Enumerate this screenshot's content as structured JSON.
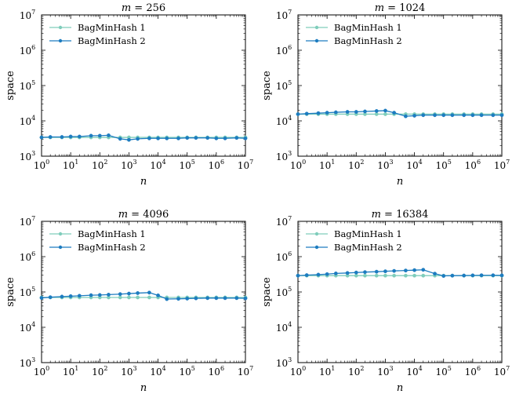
{
  "chart_data": [
    {
      "type": "line",
      "title": "m = 256",
      "title_var": "m",
      "title_value": "256",
      "xlabel": "n",
      "ylabel": "space",
      "xscale": "log",
      "yscale": "log",
      "xlim": [
        1,
        10000000
      ],
      "ylim": [
        1000,
        10000000
      ],
      "xticks": [
        1,
        10,
        100,
        1000,
        10000,
        100000,
        1000000,
        10000000
      ],
      "yticks": [
        1000,
        10000,
        100000,
        1000000,
        10000000
      ],
      "legend_position": "top-left",
      "x": [
        1,
        2,
        5,
        10,
        20,
        50,
        100,
        200,
        500,
        1000,
        2000,
        5000,
        10000,
        20000,
        50000,
        100000,
        200000,
        500000,
        1000000,
        2000000,
        5000000,
        10000000
      ],
      "series": [
        {
          "name": "BagMinHash 1",
          "color": "#7fcdbb",
          "values": [
            3400,
            3400,
            3400,
            3400,
            3400,
            3400,
            3400,
            3400,
            3400,
            3400,
            3400,
            3400,
            3400,
            3400,
            3400,
            3400,
            3400,
            3400,
            3400,
            3400,
            3400,
            3400
          ]
        },
        {
          "name": "BagMinHash 2",
          "color": "#1d7cc0",
          "values": [
            3400,
            3500,
            3500,
            3600,
            3600,
            3800,
            3800,
            3900,
            3100,
            2900,
            3100,
            3200,
            3200,
            3200,
            3200,
            3300,
            3300,
            3300,
            3200,
            3200,
            3300,
            3200
          ]
        }
      ]
    },
    {
      "type": "line",
      "title": "m = 1024",
      "title_var": "m",
      "title_value": "1024",
      "xlabel": "n",
      "ylabel": "space",
      "xscale": "log",
      "yscale": "log",
      "xlim": [
        1,
        10000000
      ],
      "ylim": [
        1000,
        10000000
      ],
      "xticks": [
        1,
        10,
        100,
        1000,
        10000,
        100000,
        1000000,
        10000000
      ],
      "yticks": [
        1000,
        10000,
        100000,
        1000000,
        10000000
      ],
      "legend_position": "top-left",
      "x": [
        1,
        2,
        5,
        10,
        20,
        50,
        100,
        200,
        500,
        1000,
        2000,
        5000,
        10000,
        20000,
        50000,
        100000,
        200000,
        500000,
        1000000,
        2000000,
        5000000,
        10000000
      ],
      "series": [
        {
          "name": "BagMinHash 1",
          "color": "#7fcdbb",
          "values": [
            15500,
            15500,
            15500,
            15500,
            15500,
            15500,
            15500,
            15500,
            15500,
            15500,
            15500,
            15500,
            15500,
            15500,
            15500,
            15500,
            15500,
            15500,
            15500,
            15500,
            15500,
            15500
          ]
        },
        {
          "name": "BagMinHash 2",
          "color": "#1d7cc0",
          "values": [
            15500,
            16000,
            16500,
            17000,
            17500,
            18000,
            18000,
            18500,
            19000,
            19500,
            17000,
            13500,
            14000,
            14500,
            14500,
            14500,
            14500,
            14500,
            14500,
            14500,
            14500,
            14500
          ]
        }
      ]
    },
    {
      "type": "line",
      "title": "m = 4096",
      "title_var": "m",
      "title_value": "4096",
      "xlabel": "n",
      "ylabel": "space",
      "xscale": "log",
      "yscale": "log",
      "xlim": [
        1,
        10000000
      ],
      "ylim": [
        1000,
        10000000
      ],
      "xticks": [
        1,
        10,
        100,
        1000,
        10000,
        100000,
        1000000,
        10000000
      ],
      "yticks": [
        1000,
        10000,
        100000,
        1000000,
        10000000
      ],
      "legend_position": "top-left",
      "x": [
        1,
        2,
        5,
        10,
        20,
        50,
        100,
        200,
        500,
        1000,
        2000,
        5000,
        10000,
        20000,
        50000,
        100000,
        200000,
        500000,
        1000000,
        2000000,
        5000000,
        10000000
      ],
      "series": [
        {
          "name": "BagMinHash 1",
          "color": "#7fcdbb",
          "values": [
            70000,
            70000,
            70000,
            70000,
            70000,
            70000,
            70000,
            70000,
            70000,
            70000,
            70000,
            70000,
            70000,
            70000,
            70000,
            70000,
            70000,
            70000,
            70000,
            70000,
            70000,
            70000
          ]
        },
        {
          "name": "BagMinHash 2",
          "color": "#1d7cc0",
          "values": [
            68000,
            71000,
            74000,
            76000,
            78000,
            81000,
            82000,
            84000,
            87000,
            90000,
            93000,
            96000,
            80000,
            63000,
            64000,
            65000,
            66000,
            67000,
            67000,
            67000,
            67000,
            66000
          ]
        }
      ]
    },
    {
      "type": "line",
      "title": "m = 16384",
      "title_var": "m",
      "title_value": "16384",
      "xlabel": "n",
      "ylabel": "space",
      "xscale": "log",
      "yscale": "log",
      "xlim": [
        1,
        10000000
      ],
      "ylim": [
        1000,
        10000000
      ],
      "xticks": [
        1,
        10,
        100,
        1000,
        10000,
        100000,
        1000000,
        10000000
      ],
      "yticks": [
        1000,
        10000,
        100000,
        1000000,
        10000000
      ],
      "legend_position": "top-left",
      "x": [
        1,
        2,
        5,
        10,
        20,
        50,
        100,
        200,
        500,
        1000,
        2000,
        5000,
        10000,
        20000,
        50000,
        100000,
        200000,
        500000,
        1000000,
        2000000,
        5000000,
        10000000
      ],
      "series": [
        {
          "name": "BagMinHash 1",
          "color": "#7fcdbb",
          "values": [
            290000,
            290000,
            290000,
            290000,
            290000,
            290000,
            290000,
            290000,
            290000,
            290000,
            290000,
            290000,
            290000,
            290000,
            290000,
            290000,
            290000,
            290000,
            290000,
            290000,
            290000,
            290000
          ]
        },
        {
          "name": "BagMinHash 2",
          "color": "#1d7cc0",
          "values": [
            290000,
            300000,
            310000,
            320000,
            335000,
            345000,
            355000,
            365000,
            375000,
            385000,
            395000,
            405000,
            415000,
            425000,
            330000,
            285000,
            290000,
            292000,
            295000,
            297000,
            297000,
            295000
          ]
        }
      ]
    }
  ]
}
